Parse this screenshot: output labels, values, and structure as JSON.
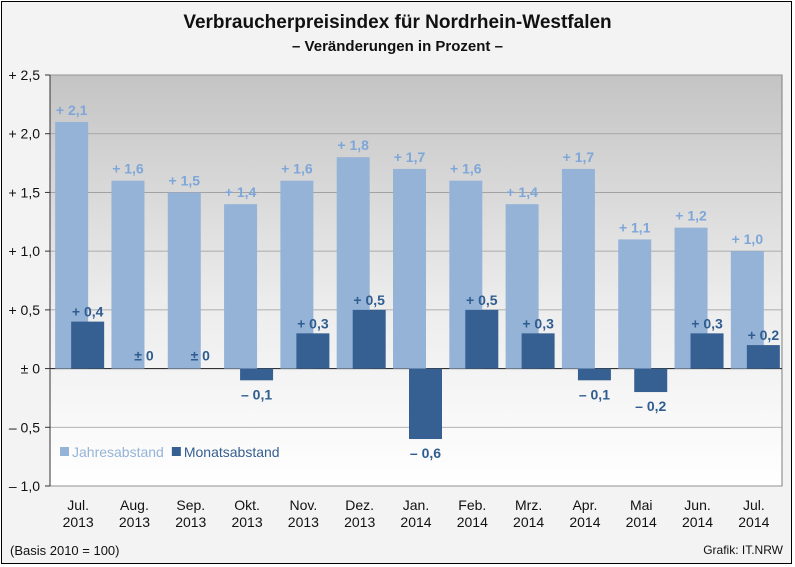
{
  "chart_data": {
    "type": "bar",
    "title": "Verbraucherpreisindex für Nordrhein-Westfalen",
    "subtitle": "– Veränderungen in Prozent –",
    "categories": [
      [
        "Jul.",
        "2013"
      ],
      [
        "Aug.",
        "2013"
      ],
      [
        "Sep.",
        "2013"
      ],
      [
        "Okt.",
        "2013"
      ],
      [
        "Nov.",
        "2013"
      ],
      [
        "Dez.",
        "2013"
      ],
      [
        "Jan.",
        "2014"
      ],
      [
        "Feb.",
        "2014"
      ],
      [
        "Mrz.",
        "2014"
      ],
      [
        "Apr.",
        "2014"
      ],
      [
        "Mai",
        "2014"
      ],
      [
        "Jun.",
        "2014"
      ],
      [
        "Jul.",
        "2014"
      ]
    ],
    "series": [
      {
        "name": "Jahresabstand",
        "color": "#95b3d7",
        "values": [
          2.1,
          1.6,
          1.5,
          1.4,
          1.6,
          1.8,
          1.7,
          1.6,
          1.4,
          1.7,
          1.1,
          1.2,
          1.0
        ],
        "labels": [
          "+ 2,1",
          "+ 1,6",
          "+ 1,5",
          "+ 1,4",
          "+ 1,6",
          "+ 1,8",
          "+ 1,7",
          "+ 1,6",
          "+ 1,4",
          "+ 1,7",
          "+ 1,1",
          "+ 1,2",
          "+ 1,0"
        ]
      },
      {
        "name": "Monatsabstand",
        "color": "#366092",
        "values": [
          0.4,
          0,
          0,
          -0.1,
          0.3,
          0.5,
          -0.6,
          0.5,
          0.3,
          -0.1,
          -0.2,
          0.3,
          0.2
        ],
        "labels": [
          "+ 0,4",
          "± 0",
          "± 0",
          "– 0,1",
          "+ 0,3",
          "+ 0,5",
          "– 0,6",
          "+ 0,5",
          "+ 0,3",
          "– 0,1",
          "– 0,2",
          "+ 0,3",
          "+ 0,2"
        ]
      }
    ],
    "ylim": [
      -1.0,
      2.5
    ],
    "yticks": [
      2.5,
      2.0,
      1.5,
      1.0,
      0.5,
      0,
      -0.5,
      -1.0
    ],
    "ytick_labels": [
      "+ 2,5",
      "+ 2,0",
      "+ 1,5",
      "+ 1,0",
      "+ 0,5",
      "± 0",
      "– 0,5",
      "– 1,0"
    ],
    "grid": true,
    "legend": "bottom-left"
  },
  "footer": {
    "basis": "(Basis 2010 = 100)",
    "credit": "Grafik: IT.NRW"
  }
}
